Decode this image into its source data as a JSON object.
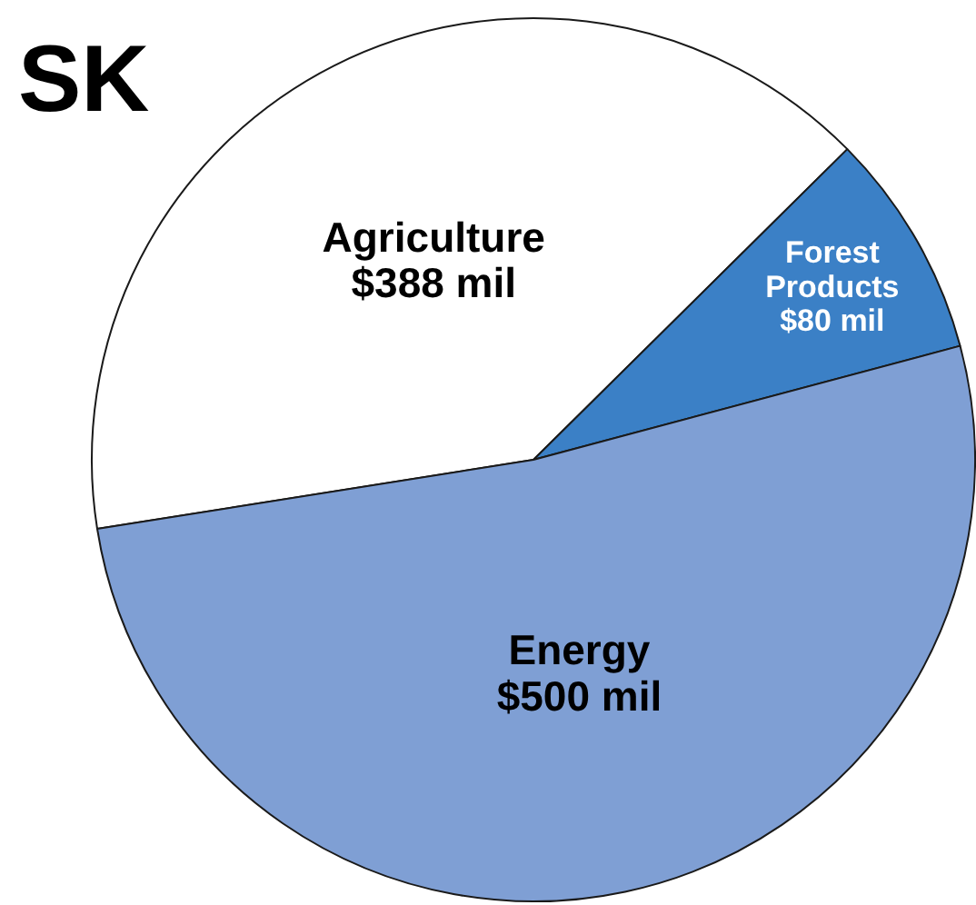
{
  "chart_data": {
    "type": "pie",
    "title": "SK",
    "categories": [
      "Agriculture",
      "Forest Products",
      "Energy"
    ],
    "values": [
      388,
      80,
      500
    ],
    "value_labels": [
      "$388 mil",
      "$80 mil",
      "$500 mil"
    ],
    "colors": [
      "#ffffff",
      "#3b80c6",
      "#7f9fd4"
    ],
    "legend": false
  }
}
